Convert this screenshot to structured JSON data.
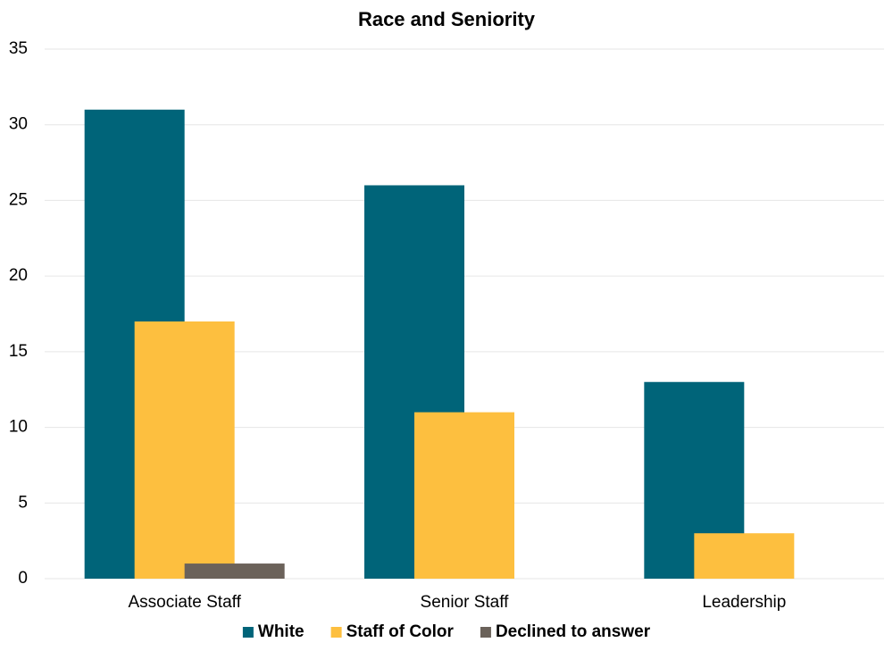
{
  "chart_data": {
    "type": "bar",
    "title": "Race and Seniority",
    "categories": [
      "Associate Staff",
      "Senior Staff",
      "Leadership"
    ],
    "series": [
      {
        "name": "White",
        "color": "#006479",
        "values": [
          31,
          26,
          13
        ]
      },
      {
        "name": "Staff of Color",
        "color": "#fdbf3f",
        "values": [
          17,
          11,
          3
        ]
      },
      {
        "name": "Declined to answer",
        "color": "#6b625a",
        "values": [
          1,
          0,
          0
        ]
      }
    ],
    "ylim": [
      0,
      35
    ],
    "yticks": [
      0,
      5,
      10,
      15,
      20,
      25,
      30,
      35
    ],
    "grid": true,
    "legend": "bottom"
  }
}
